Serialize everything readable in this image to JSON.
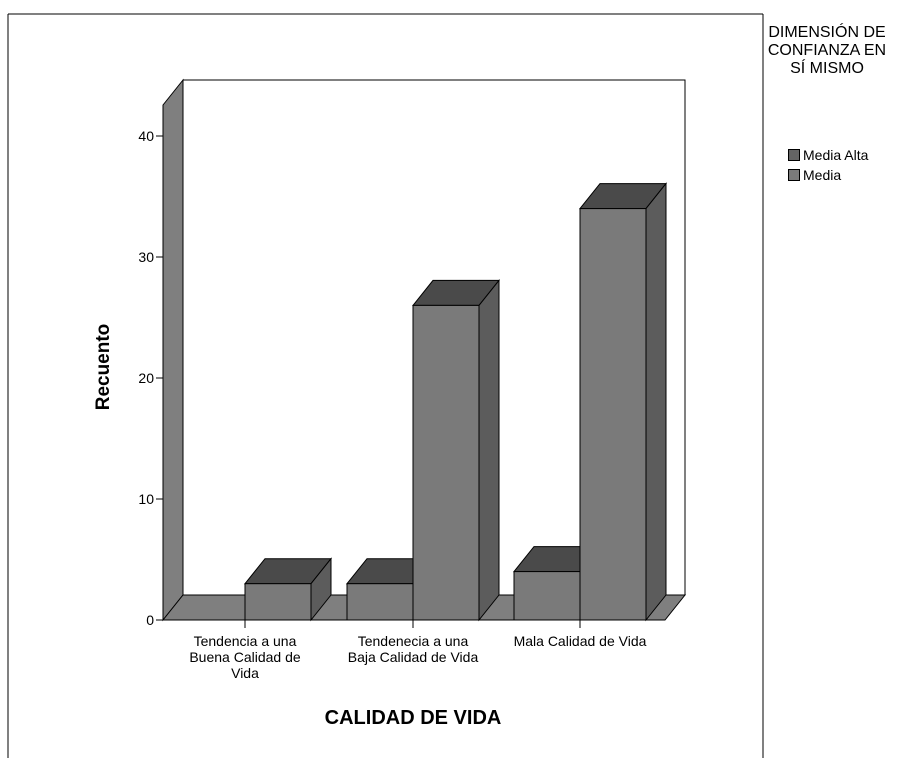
{
  "chart_data": {
    "type": "bar",
    "style": "3d-clustered",
    "xlabel": "CALIDAD DE VIDA",
    "ylabel": "Recuento",
    "ylim": [
      0,
      40
    ],
    "yticks": [
      0,
      10,
      20,
      30,
      40
    ],
    "categories": [
      "Tendencia a una Buena Calidad de Vida",
      "Tendenecia a una Baja Calidad de Vida",
      "Mala Calidad de Vida"
    ],
    "legend_title": "DIMENSIÓN DE CONFIANZA EN SÍ MISMO",
    "legend_position": "top-right",
    "series": [
      {
        "name": "Media Alta",
        "values": [
          0,
          3,
          4
        ]
      },
      {
        "name": "Media",
        "values": [
          3,
          26,
          34
        ]
      }
    ],
    "colors": {
      "front": "#7a7a7a",
      "side": "#5c5c5c",
      "top": "#4a4a4a",
      "wall": "#7f7f7f",
      "legend_media_alta": "#646464",
      "legend_media": "#7a7a7a"
    }
  }
}
